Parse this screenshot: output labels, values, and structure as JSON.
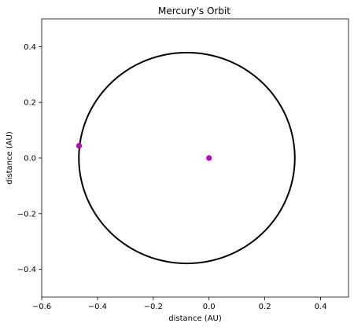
{
  "chart_data": {
    "type": "line",
    "title": "Mercury's Orbit",
    "xlabel": "distance (AU)",
    "ylabel": "distance (AU)",
    "xlim": [
      -0.6,
      0.5
    ],
    "ylim": [
      -0.5,
      0.5
    ],
    "xticks": [
      -0.6,
      -0.4,
      -0.2,
      0.0,
      0.2,
      0.4
    ],
    "xtick_labels": [
      "−0.6",
      "−0.4",
      "−0.2",
      "0.0",
      "0.2",
      "0.4"
    ],
    "yticks": [
      -0.4,
      -0.2,
      0.0,
      0.2,
      0.4
    ],
    "ytick_labels": [
      "−0.4",
      "−0.2",
      "0.0",
      "0.2",
      "0.4"
    ],
    "grid": false,
    "orbit": {
      "name": "Mercury orbit",
      "center": [
        -0.0796,
        0.0
      ],
      "semi_major_axis": 0.3871,
      "semi_minor_axis": 0.3788,
      "perihelion_x": 0.3075,
      "aphelion_x": -0.4667,
      "color": "#000000"
    },
    "points": [
      {
        "name": "Sun",
        "x": 0.0,
        "y": 0.0,
        "color": "#bf00bf"
      },
      {
        "name": "Mercury",
        "x": -0.466,
        "y": 0.044,
        "color": "#bf00bf"
      }
    ]
  }
}
